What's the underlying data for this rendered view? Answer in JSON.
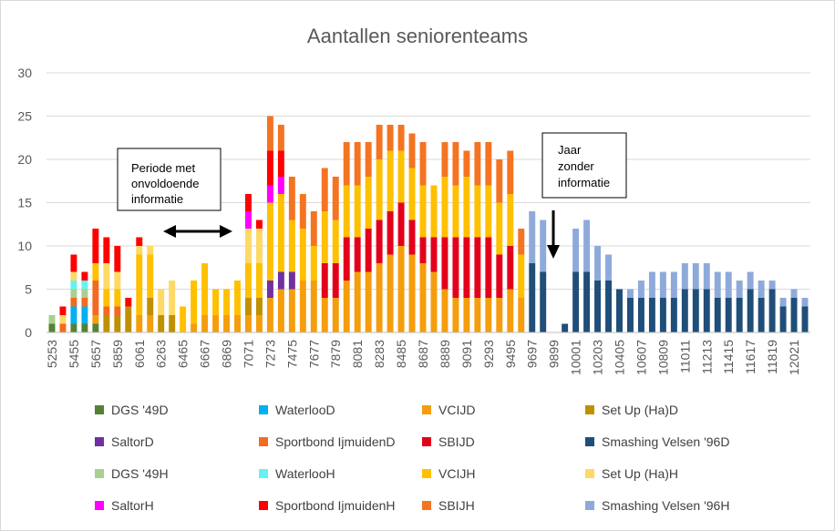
{
  "chart_data": {
    "type": "bar",
    "stacked": true,
    "title": "Aantallen seniorenteams",
    "xlabel": "",
    "ylabel": "",
    "ylim": [
      0,
      30
    ],
    "yticks": [
      "0",
      "5",
      "10",
      "15",
      "20",
      "25",
      "30"
    ],
    "grid": true,
    "legend_position": "bottom",
    "categories": [
      "5253",
      "5354",
      "5455",
      "5556",
      "5657",
      "5758",
      "5859",
      "5960",
      "6061",
      "6162",
      "6263",
      "6364",
      "6465",
      "6566",
      "6667",
      "6768",
      "6869",
      "6970",
      "7071",
      "7172",
      "7273",
      "7374",
      "7475",
      "7576",
      "7677",
      "7778",
      "7879",
      "7980",
      "8081",
      "8182",
      "8283",
      "8384",
      "8485",
      "8586",
      "8687",
      "8788",
      "8889",
      "8990",
      "9091",
      "9192",
      "9293",
      "9394",
      "9495",
      "9596",
      "9697",
      "9798",
      "9899",
      "9900",
      "10001",
      "10102",
      "10203",
      "10304",
      "10405",
      "10506",
      "10607",
      "10708",
      "10809",
      "10910",
      "11011",
      "11112",
      "11213",
      "11314",
      "11415",
      "11516",
      "11617",
      "11718",
      "11819",
      "11920",
      "12021",
      "12122"
    ],
    "tick_labels": [
      "5253",
      "5455",
      "5657",
      "5859",
      "6061",
      "6263",
      "6465",
      "6667",
      "6869",
      "7071",
      "7273",
      "7475",
      "7677",
      "7879",
      "8081",
      "8283",
      "8485",
      "8687",
      "8889",
      "9091",
      "9293",
      "9495",
      "9697",
      "9899",
      "10001",
      "10203",
      "10405",
      "10607",
      "10809",
      "11011",
      "11213",
      "11415",
      "11617",
      "11819",
      "12021"
    ],
    "series": [
      {
        "name": "DGS '49D",
        "color": "#548235",
        "values": [
          1,
          0,
          1,
          1,
          1,
          0,
          0,
          0,
          0,
          0,
          0,
          0,
          0,
          0,
          0,
          0,
          0,
          0,
          0,
          0,
          0,
          0,
          0,
          0,
          0,
          0,
          0,
          0,
          0,
          0,
          0,
          0,
          0,
          0,
          0,
          0,
          0,
          0,
          0,
          0,
          0,
          0,
          0,
          0,
          0,
          0,
          0,
          0,
          0,
          0,
          0,
          0,
          0,
          0,
          0,
          0,
          0,
          0,
          0,
          0,
          0,
          0,
          0,
          0,
          0,
          0,
          0,
          0,
          0,
          0
        ]
      },
      {
        "name": "WaterlooD",
        "color": "#00b0f0",
        "values": [
          0,
          0,
          2,
          2,
          0,
          0,
          0,
          0,
          0,
          0,
          0,
          0,
          0,
          0,
          0,
          0,
          0,
          0,
          0,
          0,
          0,
          0,
          0,
          0,
          0,
          0,
          0,
          0,
          0,
          0,
          0,
          0,
          0,
          0,
          0,
          0,
          0,
          0,
          0,
          0,
          0,
          0,
          0,
          0,
          0,
          0,
          0,
          0,
          0,
          0,
          0,
          0,
          0,
          0,
          0,
          0,
          0,
          0,
          0,
          0,
          0,
          0,
          0,
          0,
          0,
          0,
          0,
          0,
          0,
          0
        ]
      },
      {
        "name": "VCIJD",
        "color": "#f59d0c",
        "values": [
          0,
          0,
          0,
          0,
          1,
          0,
          0,
          0,
          2,
          2,
          0,
          0,
          0,
          1,
          2,
          2,
          2,
          2,
          2,
          2,
          4,
          5,
          5,
          6,
          6,
          4,
          4,
          6,
          7,
          7,
          8,
          9,
          10,
          9,
          8,
          7,
          5,
          4,
          4,
          4,
          4,
          4,
          5,
          4,
          0,
          0,
          0,
          0,
          0,
          0,
          0,
          0,
          0,
          0,
          0,
          0,
          0,
          0,
          0,
          0,
          0,
          0,
          0,
          0,
          0,
          0,
          0,
          0,
          0,
          0
        ]
      },
      {
        "name": "Set Up (Ha)D",
        "color": "#bf9000",
        "values": [
          0,
          0,
          0,
          0,
          0,
          2,
          2,
          3,
          0,
          2,
          2,
          2,
          0,
          0,
          0,
          0,
          0,
          0,
          2,
          2,
          0,
          0,
          0,
          0,
          0,
          0,
          0,
          0,
          0,
          0,
          0,
          0,
          0,
          0,
          0,
          0,
          0,
          0,
          0,
          0,
          0,
          0,
          0,
          0,
          0,
          0,
          0,
          0,
          0,
          0,
          0,
          0,
          0,
          0,
          0,
          0,
          0,
          0,
          0,
          0,
          0,
          0,
          0,
          0,
          0,
          0,
          0,
          0,
          0,
          0
        ]
      },
      {
        "name": "SaltorD",
        "color": "#7030a0",
        "values": [
          0,
          0,
          0,
          0,
          0,
          0,
          0,
          0,
          0,
          0,
          0,
          0,
          0,
          0,
          0,
          0,
          0,
          0,
          0,
          0,
          2,
          2,
          2,
          0,
          0,
          0,
          0,
          0,
          0,
          0,
          0,
          0,
          0,
          0,
          0,
          0,
          0,
          0,
          0,
          0,
          0,
          0,
          0,
          0,
          0,
          0,
          0,
          0,
          0,
          0,
          0,
          0,
          0,
          0,
          0,
          0,
          0,
          0,
          0,
          0,
          0,
          0,
          0,
          0,
          0,
          0,
          0,
          0,
          0,
          0
        ]
      },
      {
        "name": "Sportbond IjmuidenD",
        "color": "#f26b21",
        "values": [
          0,
          1,
          1,
          1,
          4,
          1,
          1,
          0,
          0,
          0,
          0,
          0,
          0,
          0,
          0,
          0,
          0,
          0,
          0,
          0,
          0,
          0,
          0,
          0,
          0,
          0,
          0,
          0,
          0,
          0,
          0,
          0,
          0,
          0,
          0,
          0,
          0,
          0,
          0,
          0,
          0,
          0,
          0,
          0,
          0,
          0,
          0,
          0,
          0,
          0,
          0,
          0,
          0,
          0,
          0,
          0,
          0,
          0,
          0,
          0,
          0,
          0,
          0,
          0,
          0,
          0,
          0,
          0,
          0,
          0
        ]
      },
      {
        "name": "SBIJD",
        "color": "#e3001b",
        "values": [
          0,
          0,
          0,
          0,
          0,
          0,
          0,
          0,
          0,
          0,
          0,
          0,
          0,
          0,
          0,
          0,
          0,
          0,
          0,
          0,
          0,
          0,
          0,
          0,
          0,
          4,
          4,
          5,
          4,
          5,
          5,
          5,
          5,
          4,
          3,
          4,
          6,
          7,
          7,
          7,
          7,
          5,
          5,
          0,
          0,
          0,
          0,
          0,
          0,
          0,
          0,
          0,
          0,
          0,
          0,
          0,
          0,
          0,
          0,
          0,
          0,
          0,
          0,
          0,
          0,
          0,
          0,
          0,
          0,
          0
        ]
      },
      {
        "name": "Smashing Velsen '96D",
        "color": "#1f4e79",
        "values": [
          0,
          0,
          0,
          0,
          0,
          0,
          0,
          0,
          0,
          0,
          0,
          0,
          0,
          0,
          0,
          0,
          0,
          0,
          0,
          0,
          0,
          0,
          0,
          0,
          0,
          0,
          0,
          0,
          0,
          0,
          0,
          0,
          0,
          0,
          0,
          0,
          0,
          0,
          0,
          0,
          0,
          0,
          0,
          0,
          8,
          7,
          0,
          1,
          7,
          7,
          6,
          6,
          5,
          4,
          4,
          4,
          4,
          4,
          5,
          5,
          5,
          4,
          4,
          4,
          5,
          4,
          5,
          3,
          4,
          3
        ]
      },
      {
        "name": "DGS '49H",
        "color": "#a9d08e",
        "values": [
          1,
          0,
          1,
          1,
          0,
          0,
          0,
          0,
          0,
          0,
          0,
          0,
          0,
          0,
          0,
          0,
          0,
          0,
          0,
          0,
          0,
          0,
          0,
          0,
          0,
          0,
          0,
          0,
          0,
          0,
          0,
          0,
          0,
          0,
          0,
          0,
          0,
          0,
          0,
          0,
          0,
          0,
          0,
          0,
          0,
          0,
          0,
          0,
          0,
          0,
          0,
          0,
          0,
          0,
          0,
          0,
          0,
          0,
          0,
          0,
          0,
          0,
          0,
          0,
          0,
          0,
          0,
          0,
          0,
          0
        ]
      },
      {
        "name": "WaterlooH",
        "color": "#66f2f2",
        "values": [
          0,
          0,
          1,
          1,
          0,
          0,
          0,
          0,
          0,
          0,
          0,
          0,
          0,
          0,
          0,
          0,
          0,
          0,
          0,
          0,
          0,
          0,
          0,
          0,
          0,
          0,
          0,
          0,
          0,
          0,
          0,
          0,
          0,
          0,
          0,
          0,
          0,
          0,
          0,
          0,
          0,
          0,
          0,
          0,
          0,
          0,
          0,
          0,
          0,
          0,
          0,
          0,
          0,
          0,
          0,
          0,
          0,
          0,
          0,
          0,
          0,
          0,
          0,
          0,
          0,
          0,
          0,
          0,
          0,
          0
        ]
      },
      {
        "name": "VCIJH",
        "color": "#ffc000",
        "values": [
          0,
          0,
          0,
          0,
          2,
          2,
          2,
          0,
          7,
          5,
          0,
          0,
          3,
          5,
          6,
          3,
          3,
          4,
          4,
          4,
          9,
          9,
          6,
          6,
          4,
          6,
          5,
          6,
          6,
          6,
          7,
          7,
          6,
          6,
          6,
          6,
          7,
          6,
          7,
          6,
          6,
          6,
          6,
          5,
          0,
          0,
          0,
          0,
          0,
          0,
          0,
          0,
          0,
          0,
          0,
          0,
          0,
          0,
          0,
          0,
          0,
          0,
          0,
          0,
          0,
          0,
          0,
          0,
          0,
          0
        ]
      },
      {
        "name": "Set Up (Ha)H",
        "color": "#ffd966",
        "values": [
          0,
          1,
          1,
          0,
          0,
          3,
          2,
          0,
          1,
          1,
          3,
          4,
          0,
          0,
          0,
          0,
          0,
          0,
          4,
          4,
          0,
          0,
          0,
          0,
          0,
          0,
          0,
          0,
          0,
          0,
          0,
          0,
          0,
          0,
          0,
          0,
          0,
          0,
          0,
          0,
          0,
          0,
          0,
          0,
          0,
          0,
          0,
          0,
          0,
          0,
          0,
          0,
          0,
          0,
          0,
          0,
          0,
          0,
          0,
          0,
          0,
          0,
          0,
          0,
          0,
          0,
          0,
          0,
          0,
          0
        ]
      },
      {
        "name": "SaltorH",
        "color": "#ff00ff",
        "values": [
          0,
          0,
          0,
          0,
          0,
          0,
          0,
          0,
          0,
          0,
          0,
          0,
          0,
          0,
          0,
          0,
          0,
          0,
          2,
          0,
          2,
          2,
          0,
          0,
          0,
          0,
          0,
          0,
          0,
          0,
          0,
          0,
          0,
          0,
          0,
          0,
          0,
          0,
          0,
          0,
          0,
          0,
          0,
          0,
          0,
          0,
          0,
          0,
          0,
          0,
          0,
          0,
          0,
          0,
          0,
          0,
          0,
          0,
          0,
          0,
          0,
          0,
          0,
          0,
          0,
          0,
          0,
          0,
          0,
          0
        ]
      },
      {
        "name": "Sportbond IjmuidenH",
        "color": "#ff0000",
        "values": [
          0,
          1,
          2,
          1,
          4,
          3,
          3,
          1,
          1,
          0,
          0,
          0,
          0,
          0,
          0,
          0,
          0,
          0,
          2,
          1,
          4,
          3,
          0,
          0,
          0,
          0,
          0,
          0,
          0,
          0,
          0,
          0,
          0,
          0,
          0,
          0,
          0,
          0,
          0,
          0,
          0,
          0,
          0,
          0,
          0,
          0,
          0,
          0,
          0,
          0,
          0,
          0,
          0,
          0,
          0,
          0,
          0,
          0,
          0,
          0,
          0,
          0,
          0,
          0,
          0,
          0,
          0,
          0,
          0,
          0
        ]
      },
      {
        "name": "SBIJH",
        "color": "#f47422",
        "values": [
          0,
          0,
          0,
          0,
          0,
          0,
          0,
          0,
          0,
          0,
          0,
          0,
          0,
          0,
          0,
          0,
          0,
          0,
          0,
          0,
          4,
          3,
          5,
          4,
          4,
          5,
          5,
          5,
          5,
          4,
          4,
          3,
          3,
          4,
          5,
          0,
          4,
          5,
          3,
          5,
          5,
          5,
          5,
          3,
          0,
          0,
          0,
          0,
          0,
          0,
          0,
          0,
          0,
          0,
          0,
          0,
          0,
          0,
          0,
          0,
          0,
          0,
          0,
          0,
          0,
          0,
          0,
          0,
          0,
          0
        ]
      },
      {
        "name": "Smashing Velsen '96H",
        "color": "#8eaadb",
        "values": [
          0,
          0,
          0,
          0,
          0,
          0,
          0,
          0,
          0,
          0,
          0,
          0,
          0,
          0,
          0,
          0,
          0,
          0,
          0,
          0,
          0,
          0,
          0,
          0,
          0,
          0,
          0,
          0,
          0,
          0,
          0,
          0,
          0,
          0,
          0,
          0,
          0,
          0,
          0,
          0,
          0,
          0,
          0,
          0,
          6,
          6,
          0,
          0,
          5,
          6,
          4,
          3,
          0,
          1,
          2,
          3,
          3,
          3,
          3,
          3,
          3,
          3,
          3,
          2,
          2,
          2,
          1,
          1,
          1,
          1
        ]
      }
    ],
    "annotations": [
      {
        "text": [
          "Periode met",
          "onvoldoende",
          "informatie"
        ],
        "arrow": "double-horizontal"
      },
      {
        "text": [
          "Jaar",
          "zonder",
          "informatie"
        ],
        "arrow": "down"
      }
    ]
  }
}
